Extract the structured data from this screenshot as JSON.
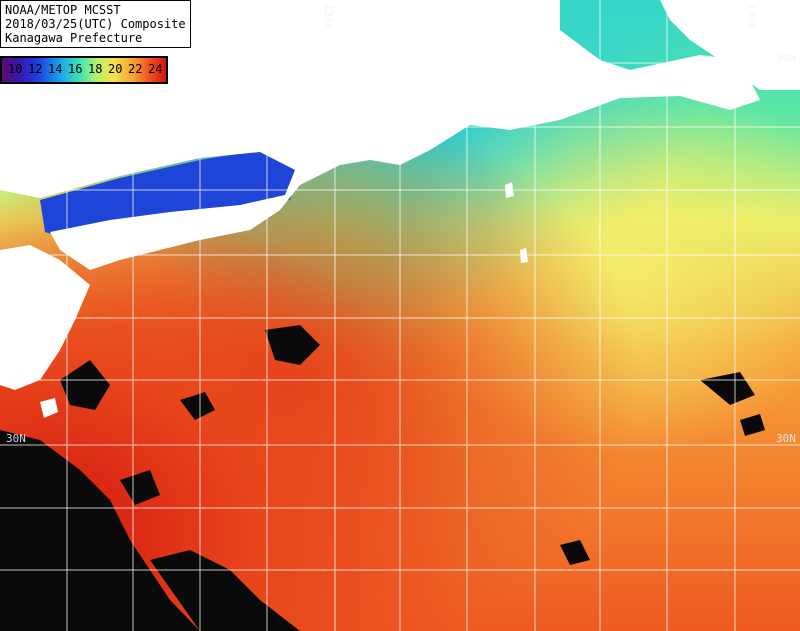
{
  "title": {
    "line1": "NOAA/METOP MCSST",
    "line2": "2018/03/25(UTC) Composite",
    "line3": "Kanagawa Prefecture"
  },
  "legend": {
    "ticks": [
      "10",
      "12",
      "14",
      "16",
      "18",
      "20",
      "22",
      "24"
    ],
    "gradient_colors": [
      "#5a0a6e",
      "#3a14b0",
      "#1d3fe0",
      "#19a8e8",
      "#3fe6b0",
      "#b6f26a",
      "#f5e24a",
      "#f6a232",
      "#ef5020",
      "#d41410"
    ]
  },
  "grid_labels": {
    "lon_136": "136E",
    "lon_140": "140E",
    "lat_36": "36N",
    "lat_30_left": "30N",
    "lat_30_right": "30N"
  },
  "colors": {
    "land": "#ffffff",
    "cloud": "#0a0a0a",
    "grid": "#ffffff"
  }
}
